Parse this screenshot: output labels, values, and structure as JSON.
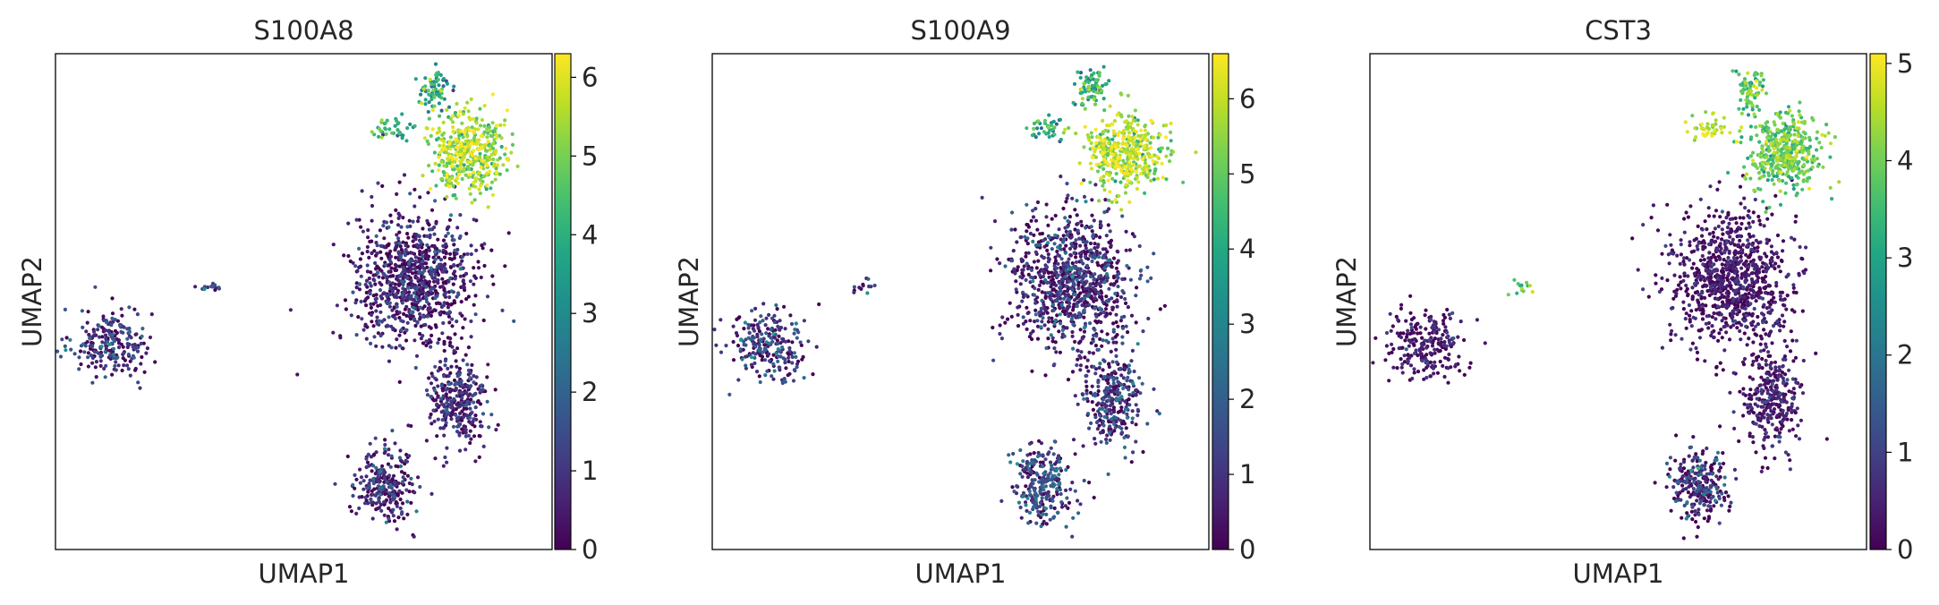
{
  "chart_data": [
    {
      "type": "scatter",
      "title": "S100A8",
      "xlabel": "UMAP1",
      "ylabel": "UMAP2",
      "colorbar": {
        "min": 0,
        "max": 6.3,
        "ticks": [
          0,
          1,
          2,
          3,
          4,
          5,
          6
        ],
        "colormap": "viridis"
      },
      "clusters": [
        {
          "center": [
            -6.7,
            -0.6
          ],
          "spread": [
            1.3,
            1.0
          ],
          "count": 230,
          "mean": 0.8,
          "sd": 0.9
        },
        {
          "center": [
            -3.5,
            1.0
          ],
          "spread": [
            0.4,
            0.2
          ],
          "count": 14,
          "mean": 0.9,
          "sd": 0.9
        },
        {
          "center": [
            3.4,
            1.2
          ],
          "spread": [
            2.0,
            1.9
          ],
          "count": 900,
          "mean": 0.4,
          "sd": 0.8
        },
        {
          "center": [
            4.8,
            -2.2
          ],
          "spread": [
            1.0,
            1.4
          ],
          "count": 300,
          "mean": 0.5,
          "sd": 0.8
        },
        {
          "center": [
            2.4,
            -4.6
          ],
          "spread": [
            1.0,
            1.1
          ],
          "count": 260,
          "mean": 0.6,
          "sd": 0.8
        },
        {
          "center": [
            5.2,
            4.8
          ],
          "spread": [
            1.3,
            1.1
          ],
          "count": 420,
          "mean": 5.3,
          "sd": 0.8
        },
        {
          "center": [
            4.1,
            6.6
          ],
          "spread": [
            0.5,
            0.6
          ],
          "count": 70,
          "mean": 3.6,
          "sd": 1.0
        },
        {
          "center": [
            2.6,
            5.5
          ],
          "spread": [
            0.7,
            0.3
          ],
          "count": 40,
          "mean": 3.5,
          "sd": 1.0
        }
      ]
    },
    {
      "type": "scatter",
      "title": "S100A9",
      "xlabel": "UMAP1",
      "ylabel": "UMAP2",
      "colorbar": {
        "min": 0,
        "max": 6.6,
        "ticks": [
          0,
          1,
          2,
          3,
          4,
          5,
          6
        ],
        "colormap": "viridis"
      },
      "clusters": [
        {
          "center": [
            -6.7,
            -0.6
          ],
          "spread": [
            1.3,
            1.0
          ],
          "count": 230,
          "mean": 1.0,
          "sd": 1.0
        },
        {
          "center": [
            -3.5,
            1.0
          ],
          "spread": [
            0.4,
            0.2
          ],
          "count": 14,
          "mean": 1.5,
          "sd": 1.0
        },
        {
          "center": [
            3.4,
            1.2
          ],
          "spread": [
            2.0,
            1.9
          ],
          "count": 900,
          "mean": 0.6,
          "sd": 1.0
        },
        {
          "center": [
            4.8,
            -2.2
          ],
          "spread": [
            1.0,
            1.4
          ],
          "count": 300,
          "mean": 0.8,
          "sd": 1.0
        },
        {
          "center": [
            2.4,
            -4.6
          ],
          "spread": [
            1.0,
            1.1
          ],
          "count": 260,
          "mean": 1.0,
          "sd": 1.0
        },
        {
          "center": [
            5.2,
            4.8
          ],
          "spread": [
            1.3,
            1.1
          ],
          "count": 420,
          "mean": 5.6,
          "sd": 0.8
        },
        {
          "center": [
            4.1,
            6.6
          ],
          "spread": [
            0.5,
            0.6
          ],
          "count": 70,
          "mean": 4.0,
          "sd": 1.0
        },
        {
          "center": [
            2.6,
            5.5
          ],
          "spread": [
            0.7,
            0.3
          ],
          "count": 40,
          "mean": 4.0,
          "sd": 1.0
        }
      ]
    },
    {
      "type": "scatter",
      "title": "CST3",
      "xlabel": "UMAP1",
      "ylabel": "UMAP2",
      "colorbar": {
        "min": 0,
        "max": 5.1,
        "ticks": [
          0,
          1,
          2,
          3,
          4,
          5
        ],
        "colormap": "viridis"
      },
      "clusters": [
        {
          "center": [
            -6.7,
            -0.6
          ],
          "spread": [
            1.3,
            1.0
          ],
          "count": 230,
          "mean": 0.2,
          "sd": 0.4
        },
        {
          "center": [
            -3.5,
            1.0
          ],
          "spread": [
            0.4,
            0.2
          ],
          "count": 14,
          "mean": 3.8,
          "sd": 0.6
        },
        {
          "center": [
            3.4,
            1.2
          ],
          "spread": [
            2.0,
            1.9
          ],
          "count": 900,
          "mean": 0.2,
          "sd": 0.4
        },
        {
          "center": [
            4.8,
            -2.2
          ],
          "spread": [
            1.0,
            1.4
          ],
          "count": 300,
          "mean": 0.3,
          "sd": 0.4
        },
        {
          "center": [
            2.4,
            -4.6
          ],
          "spread": [
            1.0,
            1.1
          ],
          "count": 260,
          "mean": 0.5,
          "sd": 0.8
        },
        {
          "center": [
            5.2,
            4.8
          ],
          "spread": [
            1.3,
            1.1
          ],
          "count": 420,
          "mean": 3.8,
          "sd": 0.5
        },
        {
          "center": [
            4.1,
            6.6
          ],
          "spread": [
            0.5,
            0.6
          ],
          "count": 70,
          "mean": 3.7,
          "sd": 0.5
        },
        {
          "center": [
            2.6,
            5.5
          ],
          "spread": [
            0.7,
            0.3
          ],
          "count": 40,
          "mean": 4.6,
          "sd": 0.4
        }
      ]
    }
  ]
}
